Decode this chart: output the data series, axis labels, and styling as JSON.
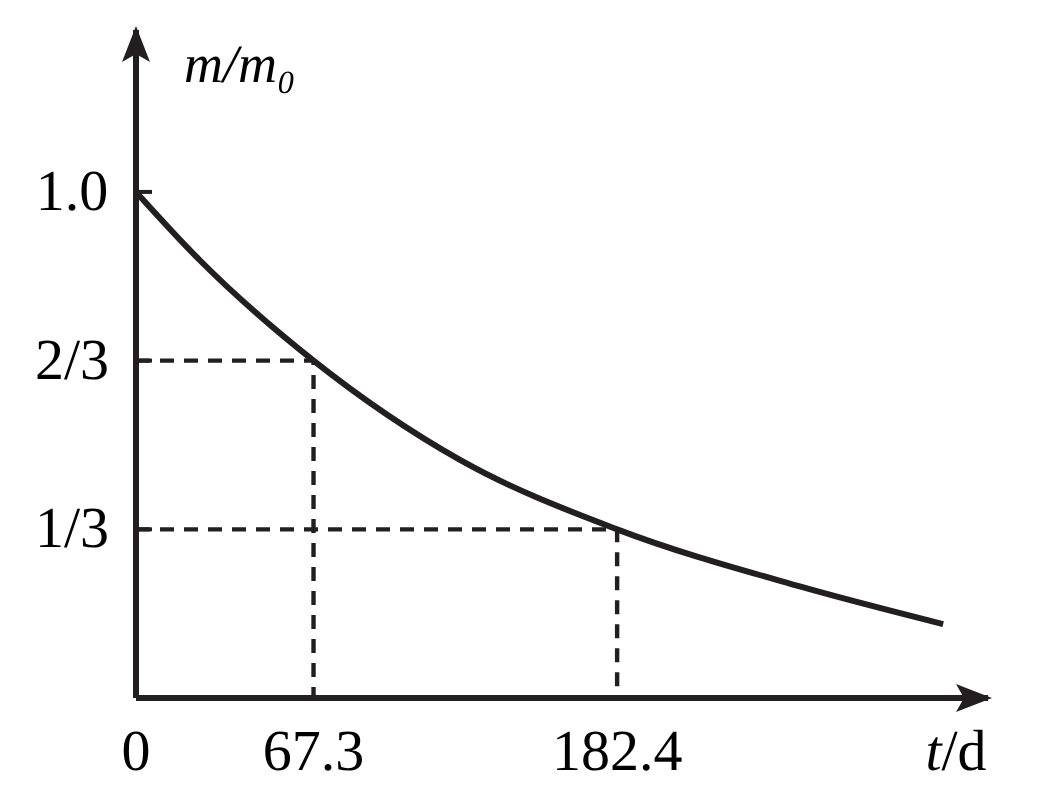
{
  "chart_data": {
    "type": "line",
    "xlabel": "t/d",
    "ylabel": "m/m₀",
    "xlim": [
      0,
      323
    ],
    "ylim": [
      0,
      1.32
    ],
    "xticks": [
      0,
      67.3,
      182.4
    ],
    "yticks": [
      {
        "value": 1,
        "label": "1.0"
      },
      {
        "value": 0.6667,
        "label": "2/3"
      },
      {
        "value": 0.3333,
        "label": "1/3"
      }
    ],
    "grid": false,
    "marker": "none",
    "series": [
      {
        "color": "#231f20",
        "line_style": "solid",
        "x": [
          0,
          24,
          67.3,
          123,
          182.4,
          252,
          306
        ],
        "values": [
          1,
          0.866,
          0.6667,
          0.47,
          0.3333,
          0.22,
          0.146
        ]
      },
      {
        "color": "#231f20",
        "line_style": "dashed",
        "x": [
          0,
          67.3,
          67.3
        ],
        "values": [
          0.6667,
          0.6667,
          0
        ]
      },
      {
        "color": "#231f20",
        "line_style": "dashed",
        "x": [
          0,
          182.4,
          182.4
        ],
        "values": [
          0.3333,
          0.3333,
          0
        ]
      }
    ]
  }
}
